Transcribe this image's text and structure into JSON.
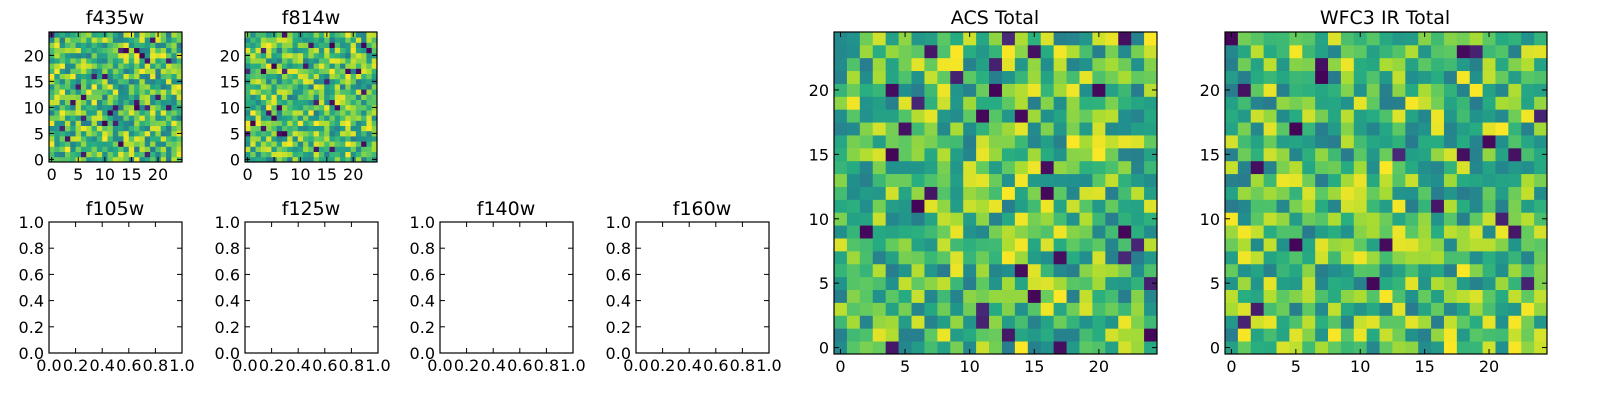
{
  "chart_data": [
    {
      "type": "heatmap",
      "title": "f435w",
      "grid_size": 25,
      "xlim": [
        -0.5,
        24.5
      ],
      "ylim": [
        -0.5,
        24.5
      ],
      "xticks": [
        0,
        5,
        10,
        15,
        20
      ],
      "yticks": [
        0,
        5,
        10,
        15,
        20
      ],
      "xtick_labels": [
        "0",
        "5",
        "10",
        "15",
        "20"
      ],
      "ytick_labels": [
        "0",
        "5",
        "10",
        "15",
        "20"
      ],
      "colormap": "viridis",
      "seed": 11
    },
    {
      "type": "heatmap",
      "title": "f814w",
      "grid_size": 25,
      "xlim": [
        -0.5,
        24.5
      ],
      "ylim": [
        -0.5,
        24.5
      ],
      "xticks": [
        0,
        5,
        10,
        15,
        20
      ],
      "yticks": [
        0,
        5,
        10,
        15,
        20
      ],
      "xtick_labels": [
        "0",
        "5",
        "10",
        "15",
        "20"
      ],
      "ytick_labels": [
        "0",
        "5",
        "10",
        "15",
        "20"
      ],
      "colormap": "viridis",
      "seed": 29
    },
    {
      "type": "empty",
      "title": "f105w",
      "xlim": [
        0,
        1
      ],
      "ylim": [
        0,
        1
      ],
      "xtick_labels": [
        "0.0",
        "0.2",
        "0.4",
        "0.6",
        "0.8",
        "1.0"
      ],
      "ytick_labels": [
        "0.0",
        "0.2",
        "0.4",
        "0.6",
        "0.8",
        "1.0"
      ]
    },
    {
      "type": "empty",
      "title": "f125w",
      "xlim": [
        0,
        1
      ],
      "ylim": [
        0,
        1
      ],
      "xtick_labels": [
        "0.0",
        "0.2",
        "0.4",
        "0.6",
        "0.8",
        "1.0"
      ],
      "ytick_labels": [
        "0.0",
        "0.2",
        "0.4",
        "0.6",
        "0.8",
        "1.0"
      ]
    },
    {
      "type": "empty",
      "title": "f140w",
      "xlim": [
        0,
        1
      ],
      "ylim": [
        0,
        1
      ],
      "xtick_labels": [
        "0.0",
        "0.2",
        "0.4",
        "0.6",
        "0.8",
        "1.0"
      ],
      "ytick_labels": [
        "0.0",
        "0.2",
        "0.4",
        "0.6",
        "0.8",
        "1.0"
      ]
    },
    {
      "type": "empty",
      "title": "f160w",
      "xlim": [
        0,
        1
      ],
      "ylim": [
        0,
        1
      ],
      "xtick_labels": [
        "0.0",
        "0.2",
        "0.4",
        "0.6",
        "0.8",
        "1.0"
      ],
      "ytick_labels": [
        "0.0",
        "0.2",
        "0.4",
        "0.6",
        "0.8",
        "1.0"
      ]
    },
    {
      "type": "heatmap",
      "title": "ACS Total",
      "grid_size": 25,
      "xlim": [
        -0.5,
        24.5
      ],
      "ylim": [
        -0.5,
        24.5
      ],
      "xticks": [
        0,
        5,
        10,
        15,
        20
      ],
      "yticks": [
        0,
        5,
        10,
        15,
        20
      ],
      "xtick_labels": [
        "0",
        "5",
        "10",
        "15",
        "20"
      ],
      "ytick_labels": [
        "0",
        "5",
        "10",
        "15",
        "20"
      ],
      "colormap": "viridis",
      "seed": 47
    },
    {
      "type": "heatmap",
      "title": "WFC3 IR Total",
      "grid_size": 25,
      "xlim": [
        -0.5,
        24.5
      ],
      "ylim": [
        -0.5,
        24.5
      ],
      "xticks": [
        0,
        5,
        10,
        15,
        20
      ],
      "yticks": [
        0,
        5,
        10,
        15,
        20
      ],
      "xtick_labels": [
        "0",
        "5",
        "10",
        "15",
        "20"
      ],
      "ytick_labels": [
        "0",
        "5",
        "10",
        "15",
        "20"
      ],
      "colormap": "viridis",
      "seed": 83
    }
  ]
}
